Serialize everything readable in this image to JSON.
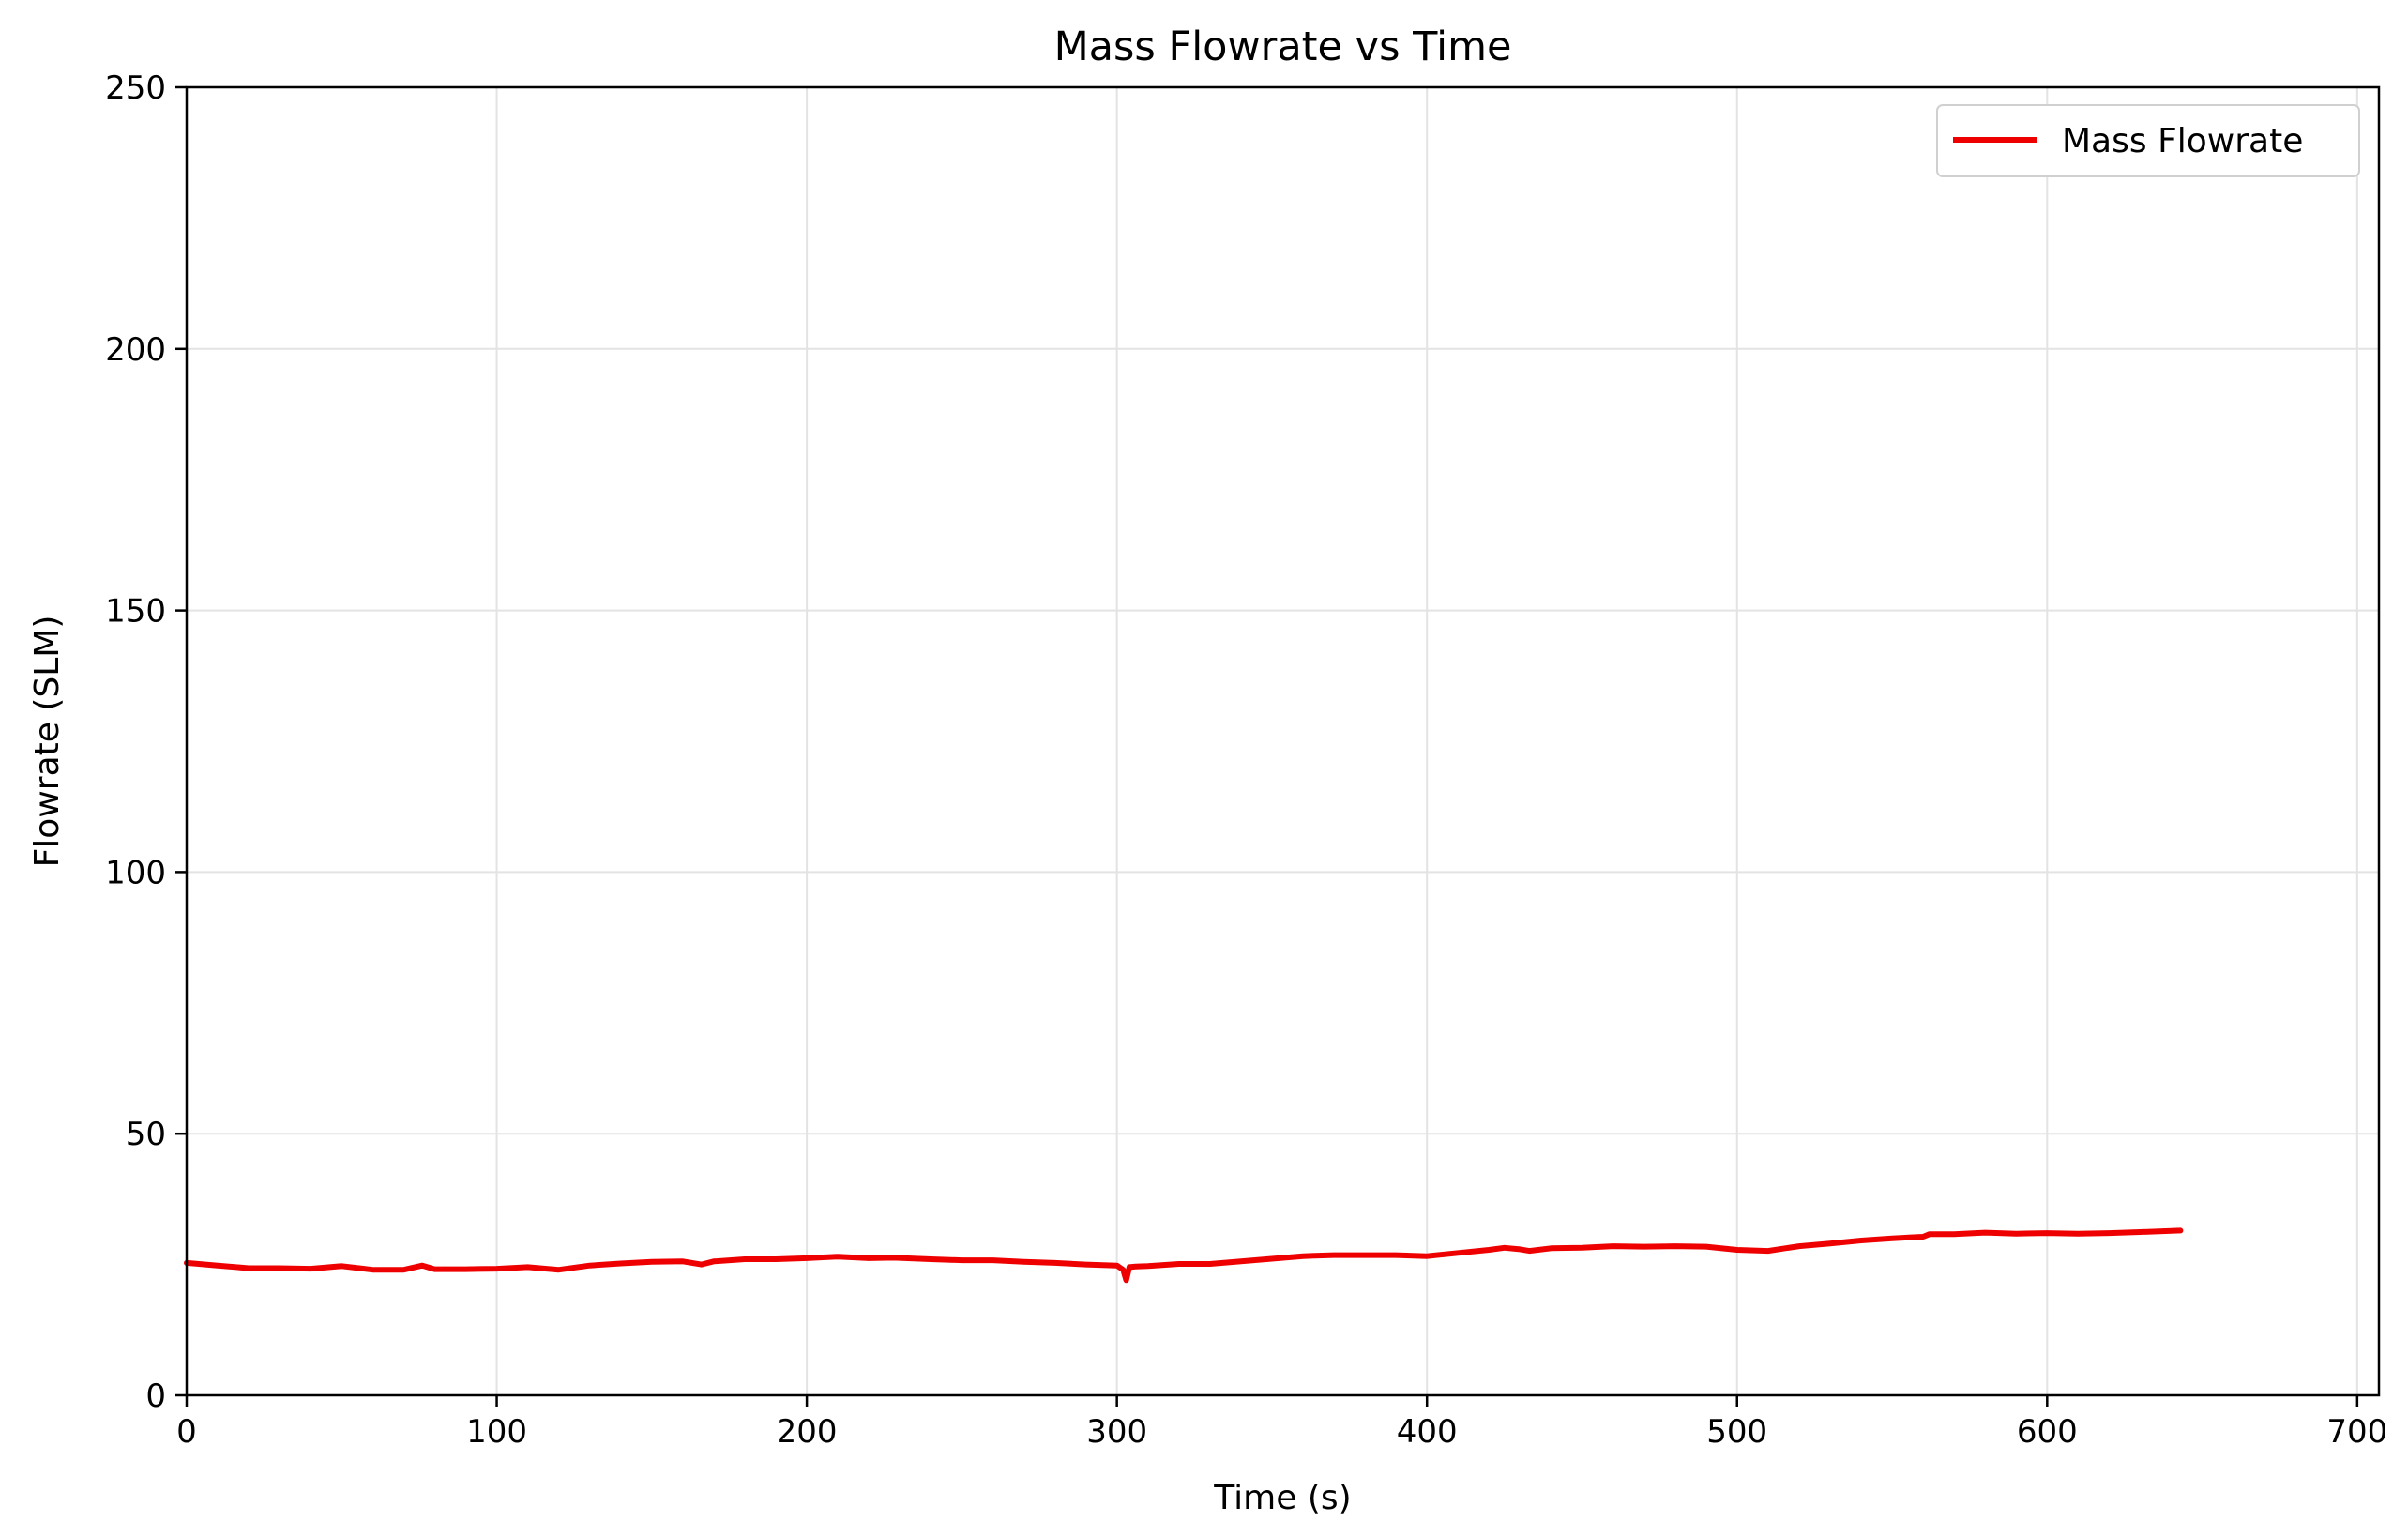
{
  "chart_data": {
    "type": "line",
    "title": "Mass Flowrate vs Time",
    "xlabel": "Time (s)",
    "ylabel": "Flowrate (SLM)",
    "xlim": [
      0,
      707
    ],
    "ylim": [
      0,
      250
    ],
    "xticks": [
      0,
      100,
      200,
      300,
      400,
      500,
      600,
      700
    ],
    "yticks": [
      0,
      50,
      100,
      150,
      200,
      250
    ],
    "grid": true,
    "legend": "top-right",
    "series": [
      {
        "name": "Mass Flowrate",
        "color": "#ee0000",
        "x": [
          0,
          10,
          20,
          30,
          40,
          50,
          60,
          70,
          76,
          80,
          90,
          100,
          110,
          120,
          130,
          140,
          150,
          160,
          166,
          170,
          180,
          190,
          200,
          210,
          220,
          228,
          240,
          250,
          260,
          270,
          280,
          290,
          300,
          302,
          303,
          304,
          306,
          310,
          320,
          330,
          340,
          350,
          360,
          370,
          380,
          390,
          400,
          410,
          420,
          425,
          430,
          433,
          440,
          450,
          460,
          470,
          480,
          490,
          500,
          510,
          520,
          530,
          540,
          550,
          560,
          562,
          570,
          580,
          590,
          600,
          610,
          620,
          630,
          643
        ],
        "y": [
          25.3,
          24.8,
          24.3,
          24.3,
          24.2,
          24.7,
          24.0,
          24.0,
          24.8,
          24.1,
          24.1,
          24.2,
          24.5,
          24.0,
          24.8,
          25.2,
          25.5,
          25.6,
          25.0,
          25.6,
          26.0,
          26.0,
          26.2,
          26.5,
          26.2,
          26.3,
          26.0,
          25.8,
          25.8,
          25.5,
          25.3,
          25.0,
          24.8,
          24.0,
          22.0,
          24.5,
          24.6,
          24.7,
          25.1,
          25.1,
          25.6,
          26.1,
          26.6,
          26.8,
          26.8,
          26.8,
          26.6,
          27.2,
          27.8,
          28.2,
          27.9,
          27.6,
          28.1,
          28.2,
          28.5,
          28.4,
          28.5,
          28.4,
          27.8,
          27.6,
          28.5,
          29.0,
          29.6,
          30.0,
          30.3,
          30.8,
          30.8,
          31.1,
          30.9,
          31.0,
          30.9,
          31.0,
          31.2,
          31.5
        ]
      }
    ]
  }
}
